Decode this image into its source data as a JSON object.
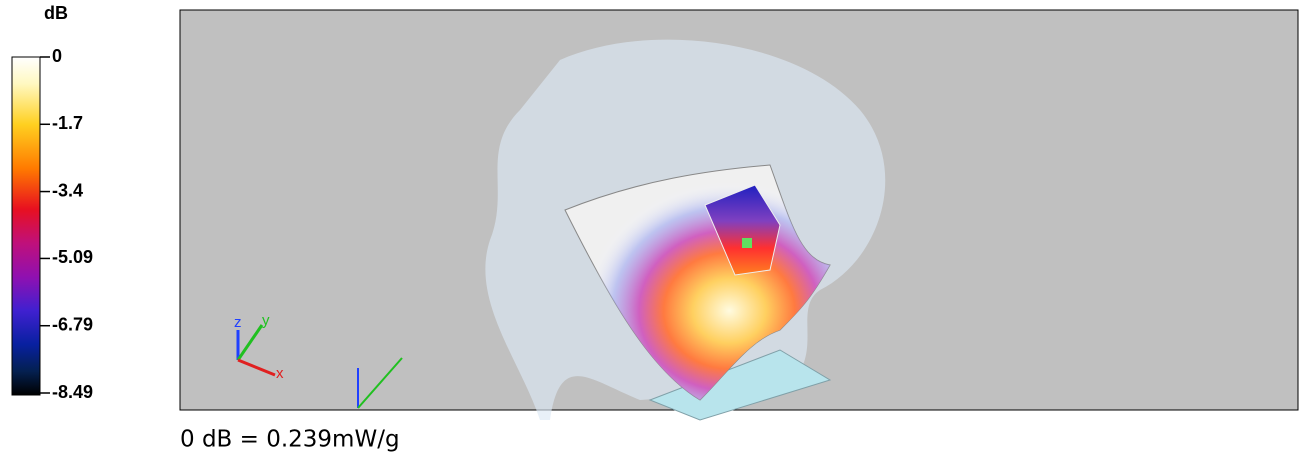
{
  "colorbar": {
    "unit": "dB",
    "ticks": [
      0,
      -1.7,
      -3.4,
      -5.09,
      -6.79,
      -8.49
    ]
  },
  "viewport": {
    "axis_labels": {
      "z": "z",
      "y": "y",
      "x": "x"
    }
  },
  "caption": "0 dB = 0.239mW/g"
}
